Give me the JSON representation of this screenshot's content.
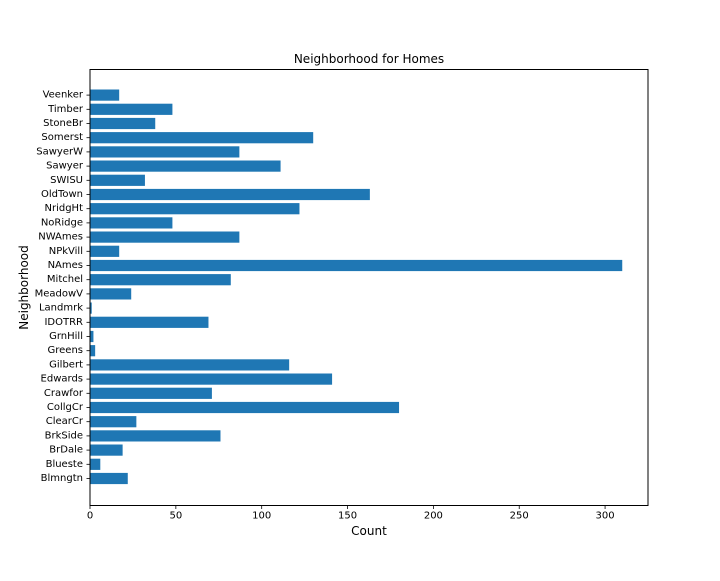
{
  "chart_data": {
    "type": "bar",
    "orientation": "horizontal",
    "title": "Neighborhood for Homes",
    "xlabel": "Count",
    "ylabel": "Neighborhood",
    "categories": [
      "Blmngtn",
      "Blueste",
      "BrDale",
      "BrkSide",
      "ClearCr",
      "CollgCr",
      "Crawfor",
      "Edwards",
      "Gilbert",
      "Greens",
      "GrnHill",
      "IDOTRR",
      "Landmrk",
      "MeadowV",
      "Mitchel",
      "NAmes",
      "NPkVill",
      "NWAmes",
      "NoRidge",
      "NridgHt",
      "OldTown",
      "SWISU",
      "Sawyer",
      "SawyerW",
      "Somerst",
      "StoneBr",
      "Timber",
      "Veenker"
    ],
    "values": [
      22,
      6,
      19,
      76,
      27,
      180,
      71,
      141,
      116,
      3,
      2,
      69,
      1,
      24,
      82,
      310,
      17,
      87,
      48,
      122,
      163,
      32,
      111,
      87,
      130,
      38,
      48,
      17
    ],
    "xlim": [
      0,
      325
    ],
    "xticks": [
      0,
      50,
      100,
      150,
      200,
      250,
      300
    ],
    "grid": false,
    "colors": {
      "bar": "#1f77b4",
      "axis": "#000000"
    }
  }
}
